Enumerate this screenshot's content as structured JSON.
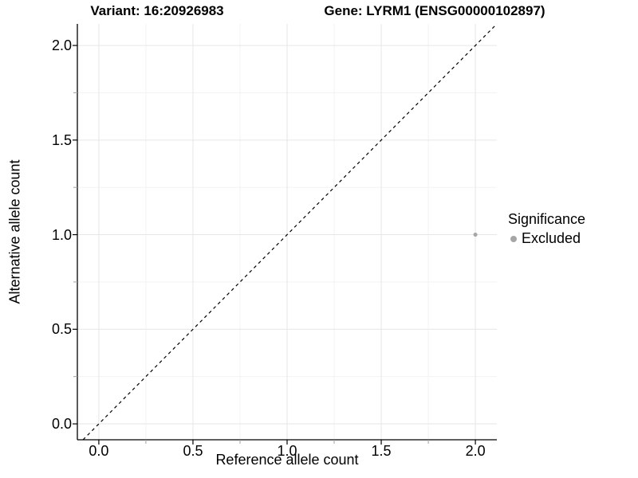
{
  "figure": {
    "background": "#ffffff",
    "title_left": "Variant: 16:20926983",
    "title_right": "Gene: LYRM1 (ENSG00000102897)"
  },
  "chart_data": {
    "type": "scatter",
    "title": "Variant: 16:20926983    Gene: LYRM1 (ENSG00000102897)",
    "xlabel": "Reference allele count",
    "ylabel": "Alternative allele count",
    "xlim": [
      -0.114,
      2.114
    ],
    "ylim": [
      -0.084,
      2.114
    ],
    "x_ticks": [
      "0.0",
      "0.5",
      "1.0",
      "1.5",
      "2.0"
    ],
    "x_tick_values": [
      0,
      0.5,
      1,
      1.5,
      2
    ],
    "y_ticks": [
      "0.0",
      "0.5",
      "1.0",
      "1.5",
      "2.0"
    ],
    "y_tick_values": [
      0,
      0.5,
      1,
      1.5,
      2
    ],
    "minor_tick_values": [
      0.25,
      0.75,
      1.25,
      1.75
    ],
    "grid": {
      "major": true,
      "minor": true
    },
    "identity_line": {
      "slope": 1,
      "intercept": 0,
      "style": "dashed",
      "color": "#000000"
    },
    "series": [
      {
        "name": "Excluded",
        "points": [
          {
            "x": 2.0,
            "y": 1.0
          }
        ],
        "color": "#a6a6a6",
        "point_radius": 2.5
      }
    ],
    "legend": {
      "title": "Significance",
      "position": "right",
      "items": [
        {
          "label": "Excluded",
          "color": "#a6a6a6"
        }
      ]
    },
    "colors": {
      "grid_major": "#e6e6e6",
      "grid_minor": "#f3f3f3",
      "axis_line": "#000000",
      "tick_major": "#000000",
      "tick_minor": "#a0a0a0",
      "text": "#000000"
    }
  }
}
